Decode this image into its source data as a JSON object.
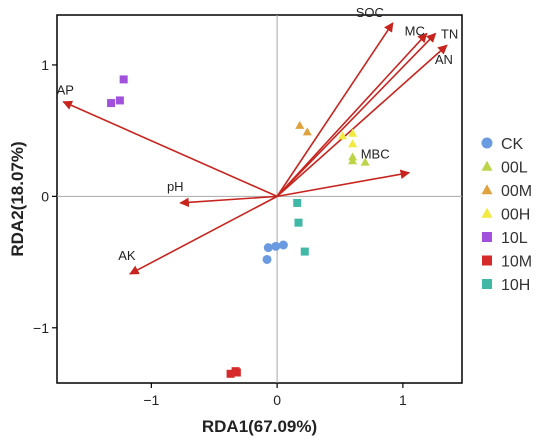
{
  "chart_data": {
    "type": "scatter",
    "title": "",
    "xlabel": "RDA1(67.09%)",
    "ylabel": "RDA2(18.07%)",
    "xlim": [
      -1.75,
      1.47
    ],
    "ylim": [
      -1.42,
      1.38
    ],
    "x_ticks": [
      -1,
      0,
      1
    ],
    "y_ticks": [
      -1,
      0,
      1
    ],
    "x_tick_labels": [
      "−1",
      "0",
      "1"
    ],
    "y_tick_labels": [
      "−1",
      "0",
      "1"
    ],
    "grid": false,
    "zero_lines": true,
    "legend_position": "right",
    "vectors": [
      {
        "name": "SOC",
        "x": 0.92,
        "y": 1.32
      },
      {
        "name": "MC",
        "x": 1.19,
        "y": 1.24
      },
      {
        "name": "TN",
        "x": 1.26,
        "y": 1.24
      },
      {
        "name": "AN",
        "x": 1.35,
        "y": 1.15
      },
      {
        "name": "MBC",
        "x": 1.05,
        "y": 0.18
      },
      {
        "name": "AP",
        "x": -1.7,
        "y": 0.72
      },
      {
        "name": "pH",
        "x": -0.77,
        "y": -0.05
      },
      {
        "name": "AK",
        "x": -1.17,
        "y": -0.59
      }
    ],
    "series": [
      {
        "name": "CK",
        "color": "#6a9ae0",
        "marker": "circle",
        "points": [
          [
            -0.07,
            -0.39
          ],
          [
            -0.01,
            -0.38
          ],
          [
            0.05,
            -0.37
          ],
          [
            -0.08,
            -0.48
          ]
        ]
      },
      {
        "name": "00L",
        "color": "#bcd548",
        "marker": "triangle",
        "points": [
          [
            0.6,
            0.27
          ],
          [
            0.6,
            0.3
          ],
          [
            0.7,
            0.26
          ]
        ]
      },
      {
        "name": "00M",
        "color": "#e0a23c",
        "marker": "triangle",
        "points": [
          [
            0.18,
            0.54
          ],
          [
            0.24,
            0.49
          ]
        ]
      },
      {
        "name": "00H",
        "color": "#f2ea3e",
        "marker": "triangle",
        "points": [
          [
            0.52,
            0.46
          ],
          [
            0.6,
            0.48
          ],
          [
            0.6,
            0.4
          ]
        ]
      },
      {
        "name": "10L",
        "color": "#a052dd",
        "marker": "square",
        "points": [
          [
            -1.22,
            0.89
          ],
          [
            -1.32,
            0.71
          ],
          [
            -1.25,
            0.73
          ]
        ]
      },
      {
        "name": "10M",
        "color": "#d62a2a",
        "marker": "square",
        "points": [
          [
            -0.37,
            -1.35
          ],
          [
            -0.32,
            -1.34
          ],
          [
            -0.33,
            -1.33
          ]
        ]
      },
      {
        "name": "10H",
        "color": "#3fb8a6",
        "marker": "square",
        "points": [
          [
            0.16,
            -0.05
          ],
          [
            0.17,
            -0.2
          ],
          [
            0.22,
            -0.42
          ]
        ]
      }
    ],
    "vector_color": "#c8241e"
  }
}
